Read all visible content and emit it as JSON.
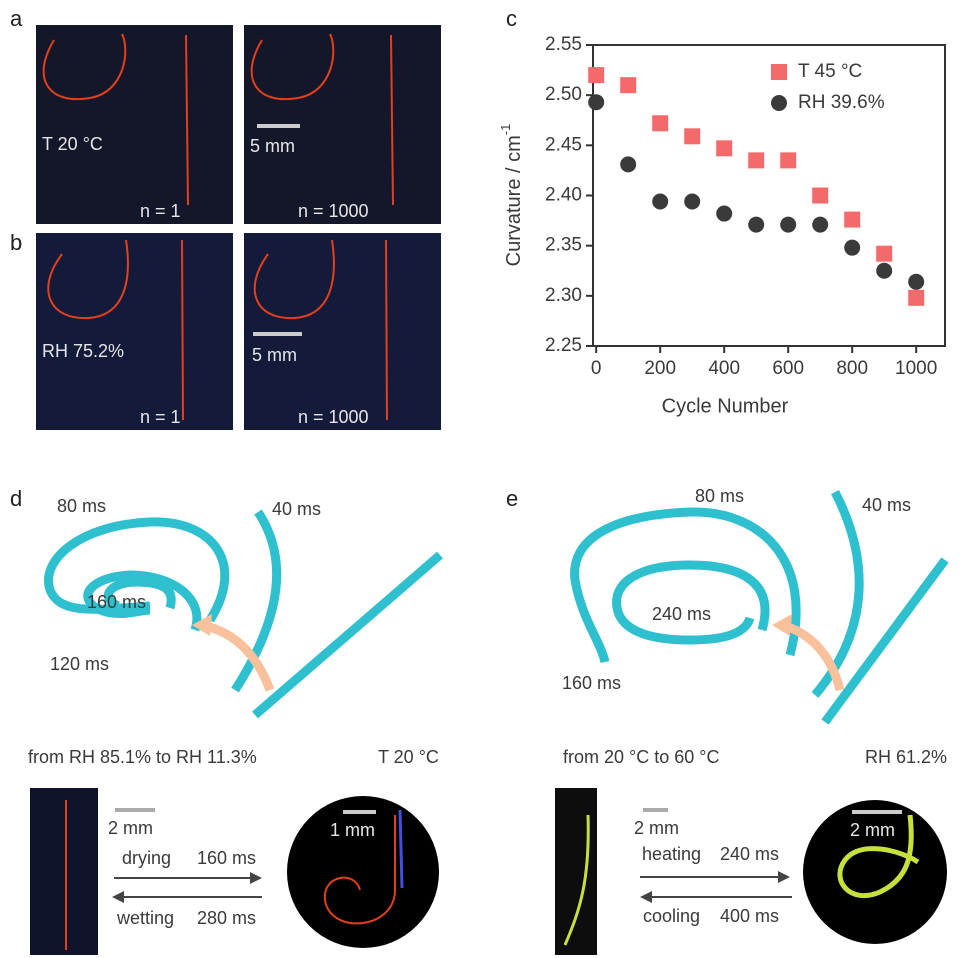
{
  "panels": {
    "a": {
      "letter": "a",
      "label": "T 20 °C",
      "scale_bar": "5 mm",
      "left": "n = 1",
      "right": "n = 1000"
    },
    "b": {
      "letter": "b",
      "label": "RH 75.2%",
      "scale_bar": "5 mm",
      "left": "n = 1",
      "right": "n = 1000"
    },
    "d": {
      "letter": "d",
      "times": [
        "80 ms",
        "40 ms",
        "160 ms",
        "120 ms"
      ],
      "caption_left": "from RH 85.1% to RH 11.3%",
      "caption_right": "T 20 °C",
      "scale_left": "2 mm",
      "scale_right": "1 mm",
      "forward_label": "drying",
      "forward_time": "160 ms",
      "backward_label": "wetting",
      "backward_time": "280 ms"
    },
    "e": {
      "letter": "e",
      "times": [
        "80 ms",
        "40 ms",
        "240 ms",
        "160 ms"
      ],
      "caption_left": "from 20 °C to 60 °C",
      "caption_right": "RH 61.2%",
      "scale_left": "2 mm",
      "scale_right": "2 mm",
      "forward_label": "heating",
      "forward_time": "240 ms",
      "backward_label": "cooling",
      "backward_time": "400 ms"
    }
  },
  "chart_data": {
    "type": "scatter",
    "letter": "c",
    "xlabel": "Cycle Number",
    "ylabel": "Curvature / cm",
    "ylabel_superscript": "-1",
    "x": [
      0,
      100,
      200,
      300,
      400,
      500,
      600,
      700,
      800,
      900,
      1000
    ],
    "series": [
      {
        "name": "T 45 °C",
        "color": "#f46a6a",
        "marker": "square",
        "values": [
          2.52,
          2.51,
          2.472,
          2.459,
          2.447,
          2.435,
          2.435,
          2.4,
          2.376,
          2.342,
          2.298
        ]
      },
      {
        "name": "RH 39.6%",
        "color": "#3a3a3a",
        "marker": "circle",
        "values": [
          2.493,
          2.431,
          2.394,
          2.394,
          2.382,
          2.371,
          2.371,
          2.371,
          2.348,
          2.325,
          2.314
        ]
      }
    ],
    "xlim": [
      -10,
      1090
    ],
    "xticks": [
      0,
      200,
      400,
      600,
      800,
      1000
    ],
    "ylim": [
      2.25,
      2.55
    ],
    "yticks": [
      2.25,
      {
        "value": 2.3,
        "label": "2.30"
      },
      2.35,
      {
        "value": 2.4,
        "label": "2.40"
      },
      2.45,
      {
        "value": 2.5,
        "label": "2.50"
      },
      2.55
    ]
  }
}
